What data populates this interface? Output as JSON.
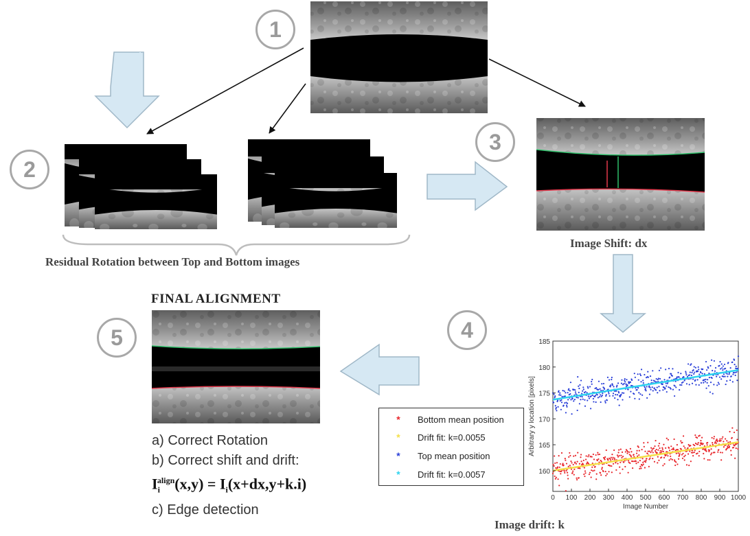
{
  "step_numbers": [
    "1",
    "2",
    "3",
    "4",
    "5"
  ],
  "captions": {
    "residual": "Residual Rotation between Top and Bottom images",
    "image_shift": "Image Shift: dx",
    "final_title": "FINAL ALIGNMENT",
    "image_drift": "Image drift: k"
  },
  "final_steps": {
    "a": "a) Correct Rotation",
    "b": "b) Correct shift and drift:",
    "formula": {
      "lhs_base": "I",
      "lhs_sub": "i",
      "lhs_sup": "align",
      "lhs_args": "(x,y) = ",
      "rhs_base": "I",
      "rhs_sub": "i",
      "rhs_args": "(x+dx,y+k.i)"
    },
    "c": "c) Edge detection"
  },
  "colors": {
    "arrow_fill": "#d6e8f3",
    "arrow_stroke": "#9fb7c7",
    "bottom_points": "#e8262b",
    "top_points": "#2a3fd8",
    "bottom_fit": "#f4e04a",
    "top_fit": "#2fd3ef"
  },
  "chart_data": {
    "type": "scatter",
    "xlabel": "Image Number",
    "ylabel": "Arbitrary y location [pixels]",
    "xlim": [
      0,
      1000
    ],
    "ylim": [
      156,
      185
    ],
    "x_ticks": [
      0,
      100,
      200,
      300,
      400,
      500,
      600,
      700,
      800,
      900,
      1000
    ],
    "y_ticks": [
      160,
      165,
      170,
      175,
      180,
      185
    ],
    "grid": false,
    "legend_position": "lower-left, outside plot",
    "series": [
      {
        "name": "Bottom mean position",
        "marker": "*",
        "color": "#e8262b",
        "trend": {
          "x": [
            0,
            1000
          ],
          "y": [
            160.0,
            165.5
          ]
        },
        "noise_sd": 1.4
      },
      {
        "name": "Drift fit: k=0.0055",
        "marker": "*",
        "color": "#f4e04a",
        "line": {
          "x": [
            0,
            1000
          ],
          "y": [
            160.0,
            165.5
          ]
        }
      },
      {
        "name": "Top mean position",
        "marker": "*",
        "color": "#2a3fd8",
        "trend": {
          "x": [
            0,
            1000
          ],
          "y": [
            173.7,
            179.4
          ]
        },
        "noise_sd": 1.5
      },
      {
        "name": "Drift fit: k=0.0057",
        "marker": "*",
        "color": "#2fd3ef",
        "line": {
          "x": [
            0,
            1000
          ],
          "y": [
            173.7,
            179.4
          ]
        }
      }
    ]
  }
}
